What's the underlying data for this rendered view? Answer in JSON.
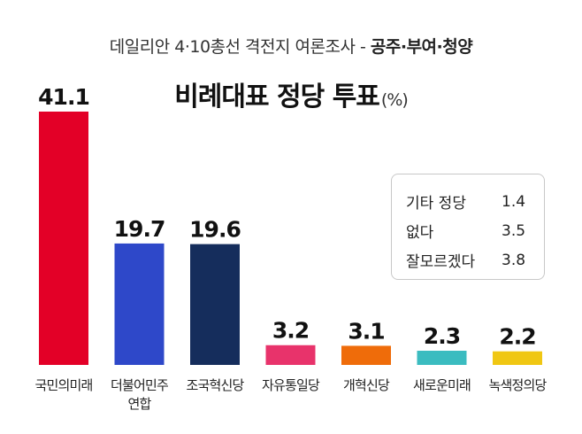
{
  "header": {
    "subtitle_prefix": "데일리안 4·10총선 격전지 여론조사 - ",
    "subtitle_region": "공주·부여·청양",
    "title_main": "비례대표 정당 투표",
    "title_unit": "(%)"
  },
  "colors": {
    "국민의미래": "#e30027",
    "더불어민주연합": "#2e48c9",
    "조국혁신당": "#152d5c",
    "자유통일당": "#e8336b",
    "개혁신당": "#ef6c0a",
    "새로운미래": "#3bbcc0",
    "녹색정의당": "#f0c713"
  },
  "chart_data": {
    "type": "bar",
    "title": "비례대표 정당 투표(%)",
    "categories": [
      "국민의미래",
      "더불어민주\n연합",
      "조국혁신당",
      "자유통일당",
      "개혁신당",
      "새로운미래",
      "녹색정의당"
    ],
    "values": [
      41.1,
      19.7,
      19.6,
      3.2,
      3.1,
      2.3,
      2.2
    ],
    "value_labels": [
      "41.1",
      "19.7",
      "19.6",
      "3.2",
      "3.1",
      "2.3",
      "2.2"
    ],
    "ylim": [
      0,
      41.1
    ],
    "xlabel": "",
    "ylabel": "",
    "grid": false,
    "others": [
      {
        "label": "기타 정당",
        "value": "1.4"
      },
      {
        "label": "없다",
        "value": "3.5"
      },
      {
        "label": "잘모르겠다",
        "value": "3.8"
      }
    ]
  }
}
